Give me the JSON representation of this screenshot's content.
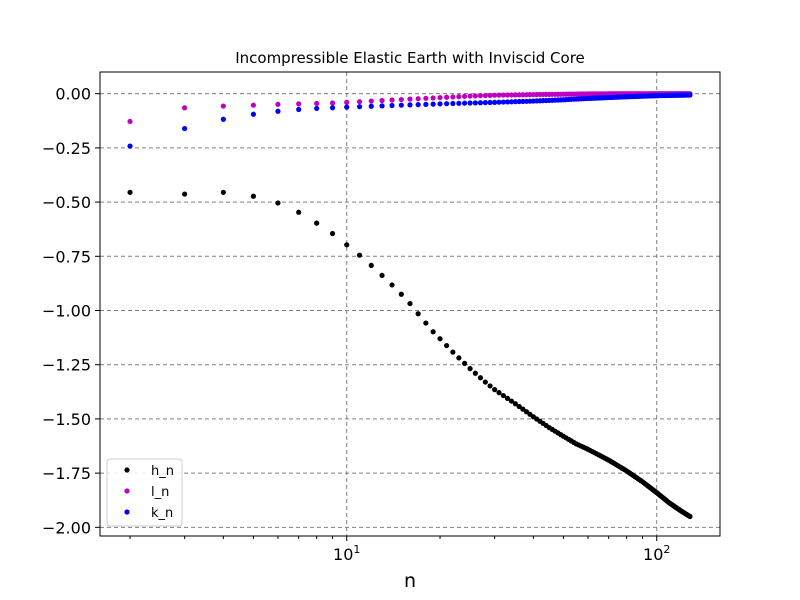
{
  "chart_data": {
    "type": "scatter",
    "title": "Incompressible Elastic Earth with Inviscid Core",
    "xlabel": "n",
    "ylabel": "",
    "xscale": "log",
    "xlim": [
      1.6,
      160
    ],
    "ylim": [
      -2.04,
      0.1
    ],
    "grid": true,
    "legend": "lower-left",
    "xticks": [
      {
        "value": 10,
        "base": "10",
        "exp": "1"
      },
      {
        "value": 100,
        "base": "10",
        "exp": "2"
      }
    ],
    "yticks": [
      0.0,
      -0.25,
      -0.5,
      -0.75,
      -1.0,
      -1.25,
      -1.5,
      -1.75,
      -2.0
    ],
    "ytick_labels": [
      "0.00",
      "−0.25",
      "−0.50",
      "−0.75",
      "−1.00",
      "−1.25",
      "−1.50",
      "−1.75",
      "−2.00"
    ],
    "n_range": [
      2,
      128
    ],
    "series": [
      {
        "name": "h_n",
        "color": "#000000",
        "anchors": [
          [
            2,
            -0.455
          ],
          [
            3,
            -0.463
          ],
          [
            4,
            -0.455
          ],
          [
            5,
            -0.473
          ],
          [
            6,
            -0.504
          ],
          [
            7,
            -0.547
          ],
          [
            8,
            -0.597
          ],
          [
            9,
            -0.645
          ],
          [
            10,
            -0.697
          ],
          [
            11,
            -0.745
          ],
          [
            12,
            -0.792
          ],
          [
            13,
            -0.838
          ],
          [
            14,
            -0.882
          ],
          [
            15,
            -0.925
          ],
          [
            16,
            -0.968
          ],
          [
            17,
            -1.015
          ],
          [
            18,
            -1.058
          ],
          [
            19,
            -1.098
          ],
          [
            20,
            -1.13
          ],
          [
            22,
            -1.192
          ],
          [
            25,
            -1.268
          ],
          [
            28,
            -1.33
          ],
          [
            30,
            -1.365
          ],
          [
            35,
            -1.43
          ],
          [
            40,
            -1.49
          ],
          [
            45,
            -1.54
          ],
          [
            50,
            -1.58
          ],
          [
            55,
            -1.615
          ],
          [
            60,
            -1.64
          ],
          [
            70,
            -1.69
          ],
          [
            80,
            -1.74
          ],
          [
            90,
            -1.79
          ],
          [
            100,
            -1.84
          ],
          [
            110,
            -1.888
          ],
          [
            120,
            -1.925
          ],
          [
            128,
            -1.95
          ]
        ]
      },
      {
        "name": "l_n",
        "color": "#c000c0",
        "anchors": [
          [
            2,
            -0.128
          ],
          [
            3,
            -0.065
          ],
          [
            4,
            -0.057
          ],
          [
            5,
            -0.053
          ],
          [
            6,
            -0.049
          ],
          [
            7,
            -0.047
          ],
          [
            8,
            -0.045
          ],
          [
            9,
            -0.043
          ],
          [
            10,
            -0.04
          ],
          [
            12,
            -0.034
          ],
          [
            15,
            -0.027
          ],
          [
            20,
            -0.018
          ],
          [
            25,
            -0.011
          ],
          [
            30,
            -0.007
          ],
          [
            40,
            -0.004
          ],
          [
            60,
            -0.001
          ],
          [
            80,
            0.0
          ],
          [
            128,
            0.0
          ]
        ]
      },
      {
        "name": "k_n",
        "color": "#0000ff",
        "anchors": [
          [
            2,
            -0.242
          ],
          [
            3,
            -0.161
          ],
          [
            4,
            -0.118
          ],
          [
            5,
            -0.095
          ],
          [
            6,
            -0.081
          ],
          [
            7,
            -0.073
          ],
          [
            8,
            -0.068
          ],
          [
            9,
            -0.065
          ],
          [
            10,
            -0.062
          ],
          [
            12,
            -0.058
          ],
          [
            15,
            -0.053
          ],
          [
            20,
            -0.047
          ],
          [
            25,
            -0.043
          ],
          [
            30,
            -0.04
          ],
          [
            40,
            -0.034
          ],
          [
            50,
            -0.028
          ],
          [
            60,
            -0.022
          ],
          [
            80,
            -0.014
          ],
          [
            100,
            -0.009
          ],
          [
            128,
            -0.006
          ]
        ]
      }
    ]
  }
}
